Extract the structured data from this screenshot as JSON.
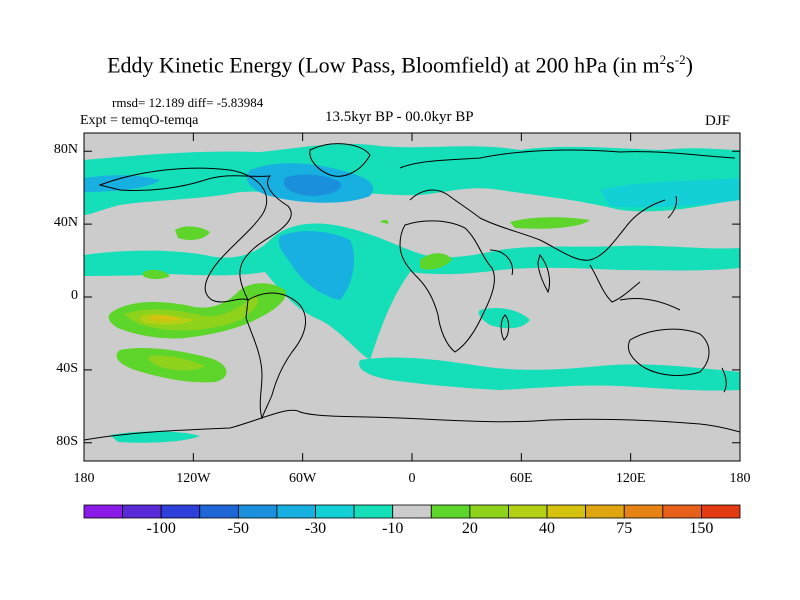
{
  "title": {
    "main": "Eddy Kinetic Energy (Low Pass, Bloomfield) at 200 hPa (in m",
    "sup1": "2",
    "mid": "s",
    "sup2": "-2",
    "end": ")"
  },
  "stats": {
    "rmsd_diff": "rmsd= 12.189 diff= -5.83984",
    "experiment": "Expt = temqO-temqa",
    "period": "13.5kyr BP - 00.0kyr BP",
    "season": "DJF"
  },
  "axes": {
    "y_ticks": [
      {
        "label": "80N",
        "lat": 80
      },
      {
        "label": "40N",
        "lat": 40
      },
      {
        "label": "0",
        "lat": 0
      },
      {
        "label": "40S",
        "lat": -40
      },
      {
        "label": "80S",
        "lat": -80
      }
    ],
    "x_ticks": [
      {
        "label": "180",
        "lon": -180
      },
      {
        "label": "120W",
        "lon": -120
      },
      {
        "label": "60W",
        "lon": -60
      },
      {
        "label": "0",
        "lon": 0
      },
      {
        "label": "60E",
        "lon": 60
      },
      {
        "label": "120E",
        "lon": 120
      },
      {
        "label": "180",
        "lon": 180
      }
    ]
  },
  "colorbar": {
    "colors": [
      "#8a1ae6",
      "#5a2ad8",
      "#2f3fd9",
      "#1f66d6",
      "#1a8fdc",
      "#18b0e0",
      "#13cfd6",
      "#15dfb8",
      "#cccccc",
      "#5dd52a",
      "#8fd21c",
      "#b5cf14",
      "#d4c20e",
      "#e0a612",
      "#e58314",
      "#e6601a",
      "#e23b12"
    ],
    "labels": [
      {
        "text": "-100",
        "index": 2
      },
      {
        "text": "-50",
        "index": 4
      },
      {
        "text": "-30",
        "index": 6
      },
      {
        "text": "-10",
        "index": 8
      },
      {
        "text": "20",
        "index": 10
      },
      {
        "text": "40",
        "index": 12
      },
      {
        "text": "75",
        "index": 14
      },
      {
        "text": "150",
        "index": 16
      }
    ]
  },
  "colors": {
    "background": "#cccccc",
    "cyan_green": "#15dfb8",
    "cyan": "#13cfd6",
    "light_blue": "#18b0e0",
    "blue": "#1a8fdc",
    "deep_blue": "#1f66d6",
    "green": "#5dd52a",
    "yellow_green": "#8fd21c",
    "olive": "#b5cf14",
    "gold": "#d4c20e"
  },
  "map_data": {
    "projection": "cylindrical-equidistant",
    "lon_range": [
      -180,
      180
    ],
    "lat_range": [
      -90,
      90
    ],
    "field": "eddy kinetic energy difference"
  }
}
